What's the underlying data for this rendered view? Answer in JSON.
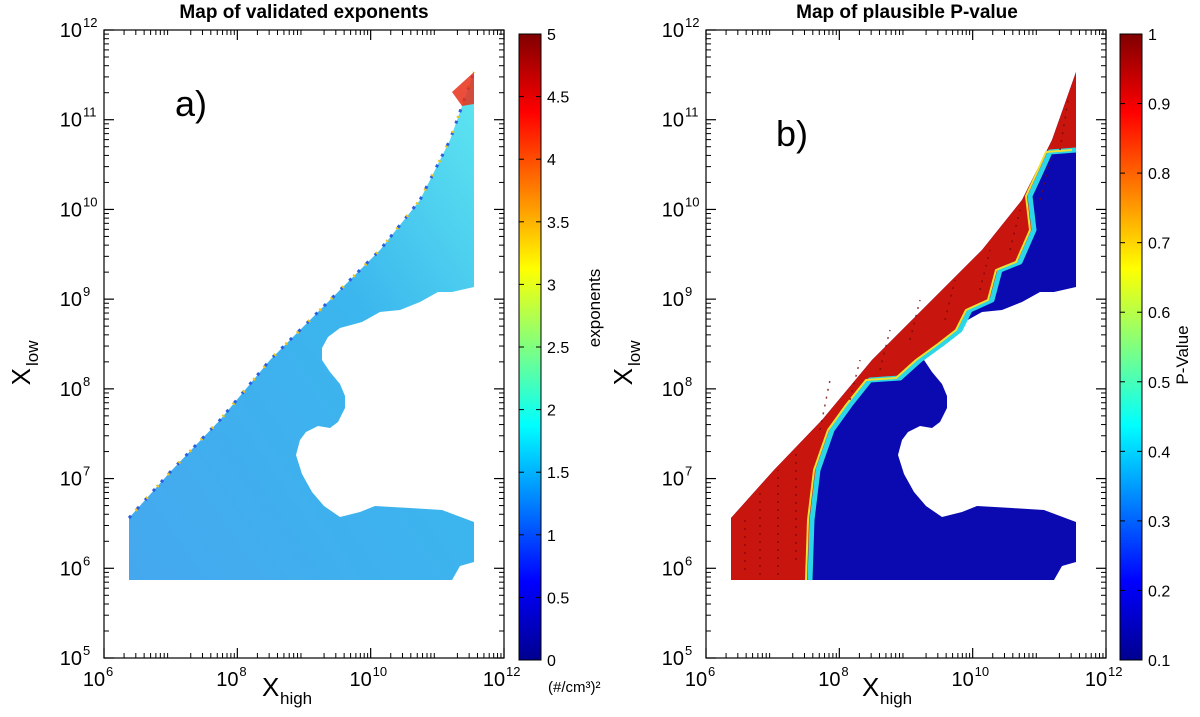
{
  "chart_data": [
    {
      "type": "heatmap",
      "title": "Map of validated exponents",
      "panel_label": "a)",
      "xlabel": {
        "base": "X",
        "sub": "high"
      },
      "ylabel": {
        "base": "X",
        "sub": "low"
      },
      "x_scale": "log",
      "y_scale": "log",
      "xlim": [
        1000000,
        1000000000000
      ],
      "ylim": [
        100000,
        1000000000000
      ],
      "x_ticks": [
        {
          "base": "10",
          "exp": "6"
        },
        {
          "base": "10",
          "exp": "8"
        },
        {
          "base": "10",
          "exp": "10"
        },
        {
          "base": "10",
          "exp": "12"
        }
      ],
      "y_ticks": [
        {
          "base": "10",
          "exp": "5"
        },
        {
          "base": "10",
          "exp": "6"
        },
        {
          "base": "10",
          "exp": "7"
        },
        {
          "base": "10",
          "exp": "8"
        },
        {
          "base": "10",
          "exp": "9"
        },
        {
          "base": "10",
          "exp": "10"
        },
        {
          "base": "10",
          "exp": "11"
        },
        {
          "base": "10",
          "exp": "12"
        }
      ],
      "colorbar": {
        "label": "exponents",
        "range": [
          0,
          5
        ],
        "ticks": [
          "0",
          "0.5",
          "1",
          "1.5",
          "2",
          "2.5",
          "3",
          "3.5",
          "4",
          "4.5",
          "5"
        ],
        "colormap": "jet",
        "unit_label": "(#/cm³)²"
      },
      "dominant_value": 1.4,
      "region_description": "valid region bounded by x_low < x_high; upper-right edge values vary widely"
    },
    {
      "type": "heatmap",
      "title": "Map of plausible P-value",
      "panel_label": "b)",
      "xlabel": {
        "base": "X",
        "sub": "high"
      },
      "ylabel": {
        "base": "X",
        "sub": "low"
      },
      "x_scale": "log",
      "y_scale": "log",
      "xlim": [
        1000000,
        1000000000000
      ],
      "ylim": [
        100000,
        1000000000000
      ],
      "x_ticks": [
        {
          "base": "10",
          "exp": "6"
        },
        {
          "base": "10",
          "exp": "8"
        },
        {
          "base": "10",
          "exp": "10"
        },
        {
          "base": "10",
          "exp": "12"
        }
      ],
      "y_ticks": [
        {
          "base": "10",
          "exp": "5"
        },
        {
          "base": "10",
          "exp": "6"
        },
        {
          "base": "10",
          "exp": "7"
        },
        {
          "base": "10",
          "exp": "8"
        },
        {
          "base": "10",
          "exp": "9"
        },
        {
          "base": "10",
          "exp": "10"
        },
        {
          "base": "10",
          "exp": "11"
        },
        {
          "base": "10",
          "exp": "12"
        }
      ],
      "colorbar": {
        "label": "P-Value",
        "range": [
          0.1,
          1
        ],
        "ticks": [
          "0.1",
          "0.2",
          "0.3",
          "0.4",
          "0.5",
          "0.6",
          "0.7",
          "0.8",
          "0.9",
          "1"
        ],
        "colormap": "jet"
      },
      "near_diagonal_value": 0.95,
      "bulk_value": 0.1
    }
  ],
  "colors": {
    "jet": [
      "#00008f",
      "#0000ff",
      "#0080ff",
      "#00ffff",
      "#80ff80",
      "#ffff00",
      "#ff8000",
      "#ff0000",
      "#800000"
    ],
    "exponent_fill": "#3fb3ee",
    "pvalue_low": "#0a0aa8",
    "pvalue_high": "#c8160e"
  }
}
